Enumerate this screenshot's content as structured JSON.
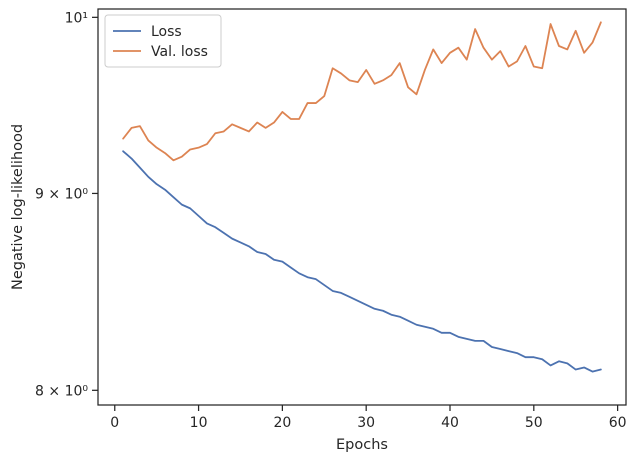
{
  "chart_data": {
    "type": "line",
    "title": "",
    "xlabel": "Epochs",
    "ylabel": "Negative log-likelihood",
    "y_scale": "log",
    "xlim": [
      -2,
      61
    ],
    "ylim": [
      7.93,
      10.05
    ],
    "x_ticks": [
      0,
      10,
      20,
      30,
      40,
      50,
      60
    ],
    "y_ticks": [
      {
        "value": 8,
        "label": "8 × 10⁰"
      },
      {
        "value": 9,
        "label": "9 × 10⁰"
      },
      {
        "value": 10,
        "label": "10¹"
      }
    ],
    "grid": false,
    "legend_position": "top-left",
    "x": [
      1,
      2,
      3,
      4,
      5,
      6,
      7,
      8,
      9,
      10,
      11,
      12,
      13,
      14,
      15,
      16,
      17,
      18,
      19,
      20,
      21,
      22,
      23,
      24,
      25,
      26,
      27,
      28,
      29,
      30,
      31,
      32,
      33,
      34,
      35,
      36,
      37,
      38,
      39,
      40,
      41,
      42,
      43,
      44,
      45,
      46,
      47,
      48,
      49,
      50,
      51,
      52,
      53,
      54,
      55,
      56,
      57,
      58
    ],
    "series": [
      {
        "name": "Loss",
        "color": "#4c72b0",
        "values": [
          9.23,
          9.19,
          9.14,
          9.09,
          9.05,
          9.02,
          8.98,
          8.94,
          8.92,
          8.88,
          8.84,
          8.82,
          8.79,
          8.76,
          8.74,
          8.72,
          8.69,
          8.68,
          8.65,
          8.64,
          8.61,
          8.58,
          8.56,
          8.55,
          8.52,
          8.49,
          8.48,
          8.46,
          8.44,
          8.42,
          8.4,
          8.39,
          8.37,
          8.36,
          8.34,
          8.32,
          8.31,
          8.3,
          8.28,
          8.28,
          8.26,
          8.25,
          8.24,
          8.24,
          8.21,
          8.2,
          8.19,
          8.18,
          8.16,
          8.16,
          8.15,
          8.12,
          8.14,
          8.13,
          8.1,
          8.11,
          8.09,
          8.1
        ]
      },
      {
        "name": "Val. loss",
        "color": "#dd8452",
        "values": [
          9.3,
          9.36,
          9.37,
          9.29,
          9.25,
          9.22,
          9.18,
          9.2,
          9.24,
          9.25,
          9.27,
          9.33,
          9.34,
          9.38,
          9.36,
          9.34,
          9.39,
          9.36,
          9.39,
          9.45,
          9.41,
          9.41,
          9.5,
          9.5,
          9.54,
          9.7,
          9.67,
          9.63,
          9.62,
          9.69,
          9.61,
          9.63,
          9.66,
          9.73,
          9.59,
          9.55,
          9.69,
          9.81,
          9.73,
          9.79,
          9.82,
          9.75,
          9.93,
          9.82,
          9.75,
          9.8,
          9.71,
          9.74,
          9.83,
          9.71,
          9.7,
          9.96,
          9.83,
          9.81,
          9.92,
          9.79,
          9.85,
          9.97
        ]
      }
    ]
  }
}
